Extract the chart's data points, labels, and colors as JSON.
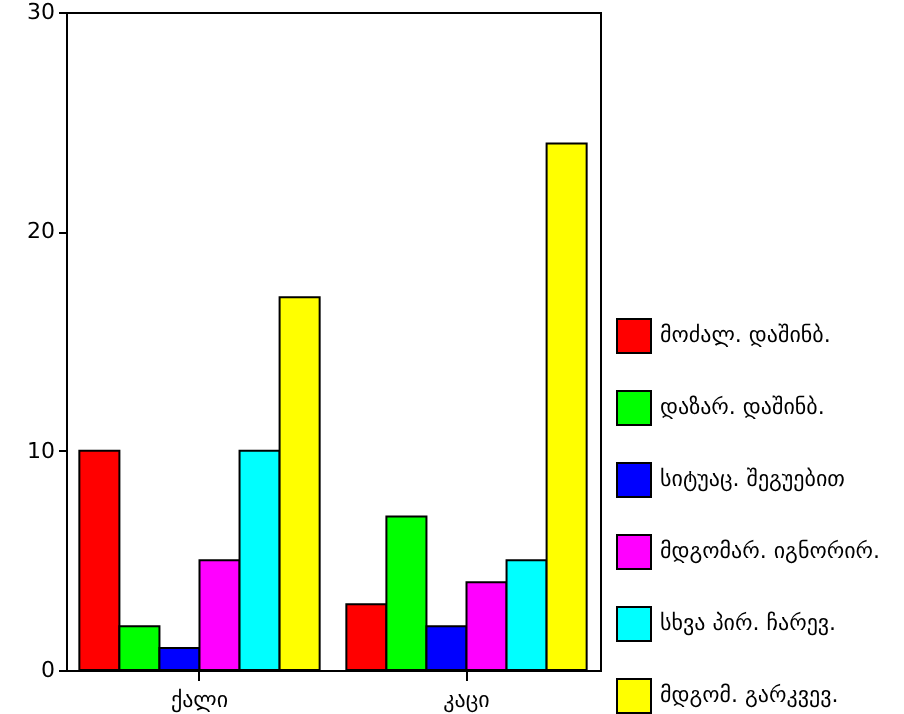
{
  "chart_data": {
    "type": "bar",
    "categories": [
      "ქალი",
      "კაცი"
    ],
    "series": [
      {
        "name": "მოძალ. დაშინბ.",
        "color": "#ff0000",
        "values": [
          10,
          3
        ]
      },
      {
        "name": "დაზარ. დაშინბ.",
        "color": "#00ff00",
        "values": [
          2,
          7
        ]
      },
      {
        "name": "სიტუაც. შეგუებით",
        "color": "#0000ff",
        "values": [
          1,
          2
        ]
      },
      {
        "name": "მდგომარ. იგნორირ.",
        "color": "#ff00ff",
        "values": [
          5,
          4
        ]
      },
      {
        "name": "სხვა პირ. ჩარევ.",
        "color": "#00ffff",
        "values": [
          10,
          5
        ]
      },
      {
        "name": "მდგომ. გარკვევ.",
        "color": "#ffff00",
        "values": [
          17,
          24
        ]
      }
    ],
    "ylim": [
      0,
      30
    ],
    "yticks": [
      0,
      10,
      20,
      30
    ],
    "grid": false,
    "legend": "right"
  }
}
